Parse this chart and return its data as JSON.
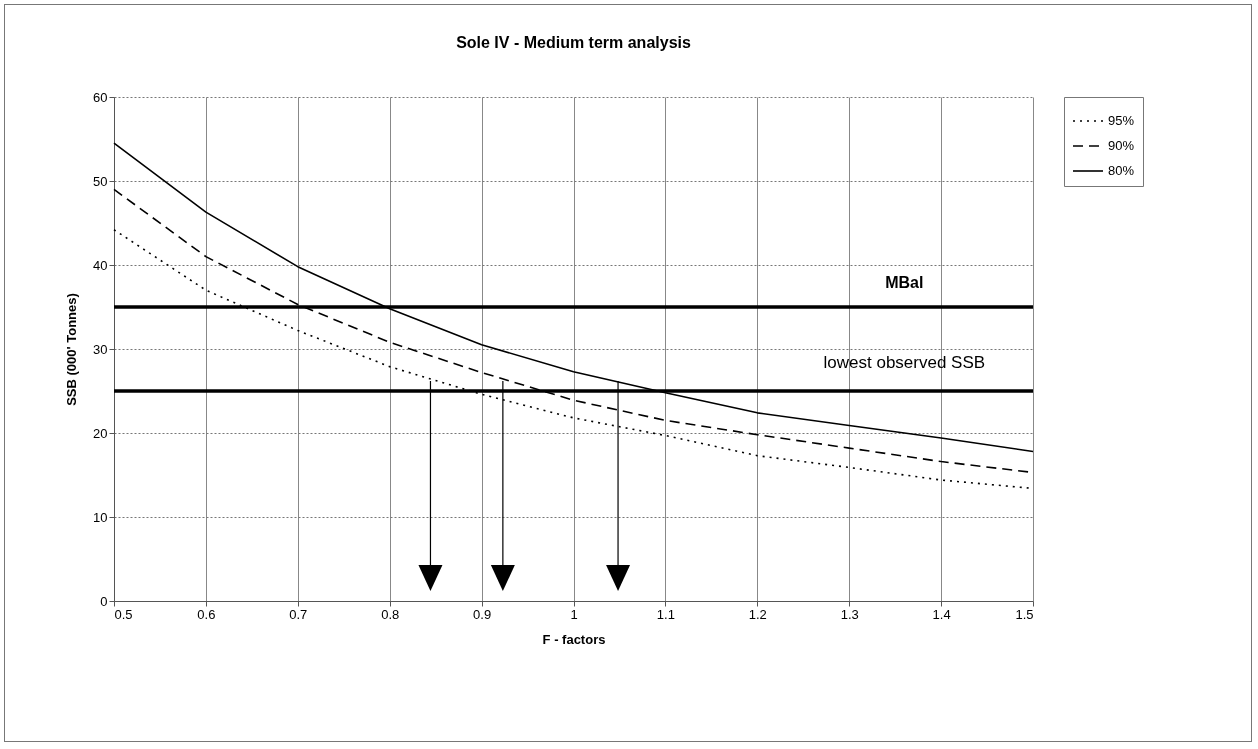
{
  "chart_data": {
    "type": "line",
    "title": "Sole IV - Medium term analysis",
    "xlabel": "F - factors",
    "ylabel": "SSB (000' Tonnes)",
    "x": [
      0.5,
      0.6,
      0.7,
      0.8,
      0.9,
      1.0,
      1.1,
      1.2,
      1.3,
      1.4,
      1.5
    ],
    "series": [
      {
        "name": "95%",
        "color": "#000000",
        "line_style": "dotted",
        "values": [
          44.2,
          37,
          32.2,
          27.9,
          24.6,
          21.8,
          19.7,
          17.3,
          15.9,
          14.4,
          13.4
        ]
      },
      {
        "name": "90%",
        "color": "#000000",
        "line_style": "dashed",
        "values": [
          49,
          41,
          35.3,
          30.8,
          27.2,
          23.9,
          21.5,
          19.8,
          18.2,
          16.6,
          15.3
        ]
      },
      {
        "name": "80%",
        "color": "#000000",
        "line_style": "solid",
        "values": [
          54.5,
          46.3,
          39.8,
          34.8,
          30.5,
          27.3,
          24.8,
          22.4,
          20.9,
          19.4,
          17.8
        ]
      }
    ],
    "ref_lines": [
      {
        "axis": "y",
        "value": 35,
        "label": "MBal",
        "color": "#000000"
      },
      {
        "axis": "y",
        "value": 25,
        "label": "lowest observed SSB",
        "color": "#000000"
      }
    ],
    "xlim": [
      0.5,
      1.5
    ],
    "xticks": [
      0.5,
      0.6,
      0.7,
      0.8,
      0.9,
      1,
      1.1,
      1.2,
      1.3,
      1.4,
      1.5
    ],
    "ylim": [
      0,
      60
    ],
    "yticks": [
      0,
      10,
      20,
      30,
      40,
      50,
      60
    ],
    "grid": true,
    "legend": "right",
    "marker": "none"
  }
}
